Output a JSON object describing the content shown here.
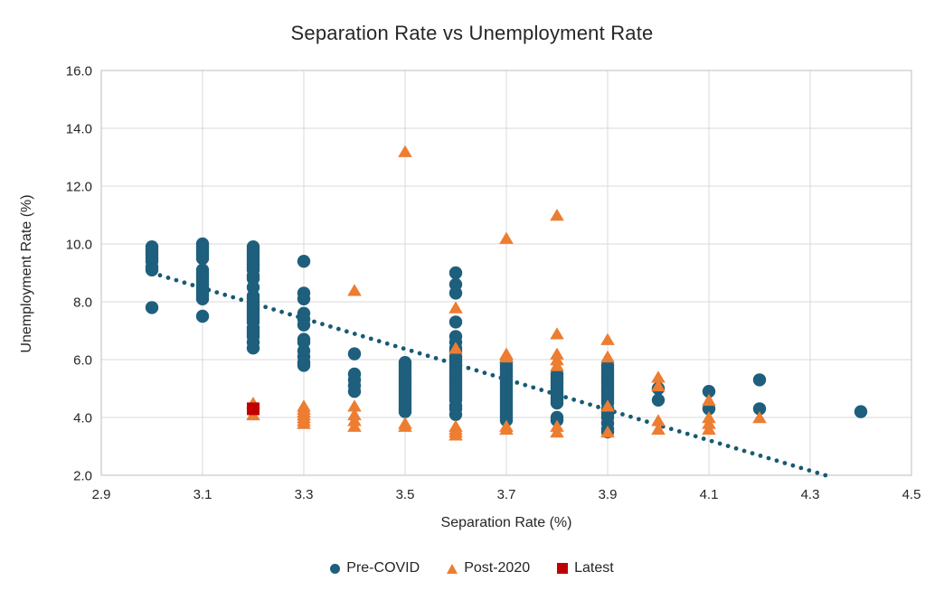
{
  "chart_data": {
    "type": "scatter",
    "title": "Separation Rate vs Unemployment Rate",
    "xlabel": "Separation Rate (%)",
    "ylabel": "Unemployment Rate (%)",
    "xlim": [
      2.9,
      4.5
    ],
    "ylim": [
      2.0,
      16.0
    ],
    "xticks": [
      "2.9",
      "3.1",
      "3.3",
      "3.5",
      "3.7",
      "3.9",
      "4.1",
      "4.3",
      "4.5"
    ],
    "yticks": [
      "2.0",
      "4.0",
      "6.0",
      "8.0",
      "10.0",
      "12.0",
      "14.0",
      "16.0"
    ],
    "grid": true,
    "legend_position": "bottom",
    "colors": {
      "grid": "#D9D9D9",
      "plot_border": "#C8C8C8",
      "text": "#262626",
      "trendline": "#175A74"
    },
    "trendline": {
      "style": "dotted",
      "from": [
        3.0,
        9.0
      ],
      "to": [
        4.33,
        2.0
      ]
    },
    "series": [
      {
        "name": "Pre-COVID",
        "marker": "circle",
        "color": "#1E5F7D",
        "points": [
          [
            3.0,
            9.9
          ],
          [
            3.0,
            9.8
          ],
          [
            3.0,
            9.7
          ],
          [
            3.0,
            9.6
          ],
          [
            3.0,
            9.5
          ],
          [
            3.0,
            9.4
          ],
          [
            3.0,
            9.2
          ],
          [
            3.0,
            9.1
          ],
          [
            3.0,
            7.8
          ],
          [
            3.1,
            10.0
          ],
          [
            3.1,
            9.9
          ],
          [
            3.1,
            9.8
          ],
          [
            3.1,
            9.7
          ],
          [
            3.1,
            9.6
          ],
          [
            3.1,
            9.5
          ],
          [
            3.1,
            9.1
          ],
          [
            3.1,
            9.0
          ],
          [
            3.1,
            8.9
          ],
          [
            3.1,
            8.8
          ],
          [
            3.1,
            8.7
          ],
          [
            3.1,
            8.6
          ],
          [
            3.1,
            8.5
          ],
          [
            3.1,
            8.4
          ],
          [
            3.1,
            8.3
          ],
          [
            3.1,
            8.2
          ],
          [
            3.1,
            8.1
          ],
          [
            3.1,
            7.5
          ],
          [
            3.2,
            9.9
          ],
          [
            3.2,
            9.8
          ],
          [
            3.2,
            9.7
          ],
          [
            3.2,
            9.6
          ],
          [
            3.2,
            9.5
          ],
          [
            3.2,
            9.4
          ],
          [
            3.2,
            9.3
          ],
          [
            3.2,
            9.2
          ],
          [
            3.2,
            9.1
          ],
          [
            3.2,
            8.9
          ],
          [
            3.2,
            8.8
          ],
          [
            3.2,
            8.5
          ],
          [
            3.2,
            8.2
          ],
          [
            3.2,
            8.1
          ],
          [
            3.2,
            8.0
          ],
          [
            3.2,
            7.9
          ],
          [
            3.2,
            7.8
          ],
          [
            3.2,
            7.7
          ],
          [
            3.2,
            7.6
          ],
          [
            3.2,
            7.5
          ],
          [
            3.2,
            7.4
          ],
          [
            3.2,
            7.3
          ],
          [
            3.2,
            7.1
          ],
          [
            3.2,
            7.0
          ],
          [
            3.2,
            6.9
          ],
          [
            3.2,
            6.8
          ],
          [
            3.2,
            6.6
          ],
          [
            3.2,
            6.4
          ],
          [
            3.3,
            9.4
          ],
          [
            3.3,
            8.3
          ],
          [
            3.3,
            8.1
          ],
          [
            3.3,
            7.6
          ],
          [
            3.3,
            7.4
          ],
          [
            3.3,
            7.2
          ],
          [
            3.3,
            6.7
          ],
          [
            3.3,
            6.6
          ],
          [
            3.3,
            6.3
          ],
          [
            3.3,
            6.1
          ],
          [
            3.3,
            5.9
          ],
          [
            3.3,
            5.8
          ],
          [
            3.4,
            6.2
          ],
          [
            3.4,
            5.5
          ],
          [
            3.4,
            5.3
          ],
          [
            3.4,
            5.1
          ],
          [
            3.4,
            4.9
          ],
          [
            3.5,
            5.9
          ],
          [
            3.5,
            5.8
          ],
          [
            3.5,
            5.7
          ],
          [
            3.5,
            5.6
          ],
          [
            3.5,
            5.5
          ],
          [
            3.5,
            5.4
          ],
          [
            3.5,
            5.3
          ],
          [
            3.5,
            5.2
          ],
          [
            3.5,
            5.1
          ],
          [
            3.5,
            5.0
          ],
          [
            3.5,
            4.9
          ],
          [
            3.5,
            4.8
          ],
          [
            3.5,
            4.7
          ],
          [
            3.5,
            4.6
          ],
          [
            3.5,
            4.5
          ],
          [
            3.5,
            4.4
          ],
          [
            3.5,
            4.3
          ],
          [
            3.5,
            4.2
          ],
          [
            3.6,
            9.0
          ],
          [
            3.6,
            8.6
          ],
          [
            3.6,
            8.3
          ],
          [
            3.6,
            7.3
          ],
          [
            3.6,
            6.8
          ],
          [
            3.6,
            6.6
          ],
          [
            3.6,
            6.4
          ],
          [
            3.6,
            6.3
          ],
          [
            3.6,
            6.1
          ],
          [
            3.6,
            6.0
          ],
          [
            3.6,
            5.9
          ],
          [
            3.6,
            5.8
          ],
          [
            3.6,
            5.7
          ],
          [
            3.6,
            5.6
          ],
          [
            3.6,
            5.5
          ],
          [
            3.6,
            5.4
          ],
          [
            3.6,
            5.3
          ],
          [
            3.6,
            5.2
          ],
          [
            3.6,
            5.1
          ],
          [
            3.6,
            5.0
          ],
          [
            3.6,
            4.9
          ],
          [
            3.6,
            4.8
          ],
          [
            3.6,
            4.7
          ],
          [
            3.6,
            4.6
          ],
          [
            3.6,
            4.4
          ],
          [
            3.6,
            4.3
          ],
          [
            3.6,
            4.1
          ],
          [
            3.7,
            5.9
          ],
          [
            3.7,
            5.8
          ],
          [
            3.7,
            5.7
          ],
          [
            3.7,
            5.6
          ],
          [
            3.7,
            5.5
          ],
          [
            3.7,
            5.4
          ],
          [
            3.7,
            5.3
          ],
          [
            3.7,
            5.2
          ],
          [
            3.7,
            5.1
          ],
          [
            3.7,
            5.0
          ],
          [
            3.7,
            4.9
          ],
          [
            3.7,
            4.8
          ],
          [
            3.7,
            4.7
          ],
          [
            3.7,
            4.6
          ],
          [
            3.7,
            4.5
          ],
          [
            3.7,
            4.4
          ],
          [
            3.7,
            4.3
          ],
          [
            3.7,
            4.2
          ],
          [
            3.7,
            4.1
          ],
          [
            3.7,
            4.0
          ],
          [
            3.7,
            3.9
          ],
          [
            3.8,
            5.5
          ],
          [
            3.8,
            5.4
          ],
          [
            3.8,
            5.3
          ],
          [
            3.8,
            5.2
          ],
          [
            3.8,
            5.1
          ],
          [
            3.8,
            5.0
          ],
          [
            3.8,
            4.9
          ],
          [
            3.8,
            4.8
          ],
          [
            3.8,
            4.7
          ],
          [
            3.8,
            4.6
          ],
          [
            3.8,
            4.5
          ],
          [
            3.8,
            4.0
          ],
          [
            3.8,
            3.9
          ],
          [
            3.9,
            5.8
          ],
          [
            3.9,
            5.7
          ],
          [
            3.9,
            5.6
          ],
          [
            3.9,
            5.5
          ],
          [
            3.9,
            5.4
          ],
          [
            3.9,
            5.3
          ],
          [
            3.9,
            5.2
          ],
          [
            3.9,
            5.1
          ],
          [
            3.9,
            5.0
          ],
          [
            3.9,
            4.9
          ],
          [
            3.9,
            4.8
          ],
          [
            3.9,
            4.7
          ],
          [
            3.9,
            4.6
          ],
          [
            3.9,
            4.5
          ],
          [
            3.9,
            4.3
          ],
          [
            3.9,
            4.2
          ],
          [
            3.9,
            4.1
          ],
          [
            3.9,
            4.0
          ],
          [
            3.9,
            3.8
          ],
          [
            3.9,
            3.6
          ],
          [
            3.9,
            3.5
          ],
          [
            4.0,
            5.0
          ],
          [
            4.0,
            4.6
          ],
          [
            4.1,
            4.9
          ],
          [
            4.1,
            4.3
          ],
          [
            4.2,
            5.3
          ],
          [
            4.2,
            4.3
          ],
          [
            4.4,
            4.2
          ]
        ]
      },
      {
        "name": "Post-2020",
        "marker": "triangle",
        "color": "#ED7D31",
        "points": [
          [
            3.2,
            4.5
          ],
          [
            3.2,
            4.1
          ],
          [
            3.3,
            4.4
          ],
          [
            3.3,
            4.3
          ],
          [
            3.3,
            4.2
          ],
          [
            3.3,
            4.1
          ],
          [
            3.3,
            4.0
          ],
          [
            3.3,
            3.9
          ],
          [
            3.3,
            3.8
          ],
          [
            3.4,
            8.4
          ],
          [
            3.4,
            4.4
          ],
          [
            3.4,
            4.1
          ],
          [
            3.4,
            3.9
          ],
          [
            3.4,
            3.7
          ],
          [
            3.5,
            13.2
          ],
          [
            3.5,
            3.8
          ],
          [
            3.5,
            3.7
          ],
          [
            3.6,
            7.8
          ],
          [
            3.6,
            6.4
          ],
          [
            3.6,
            3.7
          ],
          [
            3.6,
            3.6
          ],
          [
            3.6,
            3.5
          ],
          [
            3.6,
            3.4
          ],
          [
            3.7,
            10.2
          ],
          [
            3.7,
            6.2
          ],
          [
            3.7,
            6.1
          ],
          [
            3.7,
            3.7
          ],
          [
            3.7,
            3.6
          ],
          [
            3.8,
            11.0
          ],
          [
            3.8,
            6.9
          ],
          [
            3.8,
            6.2
          ],
          [
            3.8,
            6.0
          ],
          [
            3.8,
            5.8
          ],
          [
            3.8,
            3.7
          ],
          [
            3.8,
            3.5
          ],
          [
            3.9,
            6.7
          ],
          [
            3.9,
            6.1
          ],
          [
            3.9,
            4.4
          ],
          [
            3.9,
            3.5
          ],
          [
            4.0,
            5.4
          ],
          [
            4.0,
            5.1
          ],
          [
            4.0,
            3.9
          ],
          [
            4.0,
            3.6
          ],
          [
            4.1,
            4.6
          ],
          [
            4.1,
            4.0
          ],
          [
            4.1,
            3.8
          ],
          [
            4.1,
            3.6
          ],
          [
            4.2,
            4.0
          ]
        ]
      },
      {
        "name": "Latest",
        "marker": "square",
        "color": "#C00000",
        "points": [
          [
            3.2,
            4.3
          ]
        ]
      }
    ]
  }
}
